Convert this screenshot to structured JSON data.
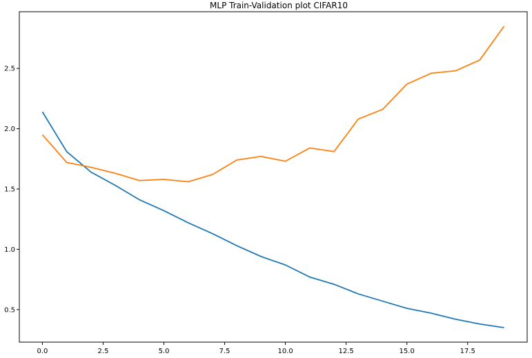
{
  "chart_data": {
    "type": "line",
    "title": "MLP Train-Validation plot CIFAR10",
    "xlabel": "",
    "ylabel": "",
    "x": [
      0,
      1,
      2,
      3,
      4,
      5,
      6,
      7,
      8,
      9,
      10,
      11,
      12,
      13,
      14,
      15,
      16,
      17,
      18,
      19
    ],
    "xlim": [
      -0.95,
      19.95
    ],
    "ylim": [
      0.23,
      2.97
    ],
    "xticks": [
      0.0,
      2.5,
      5.0,
      7.5,
      10.0,
      12.5,
      15.0,
      17.5
    ],
    "xtick_labels": [
      "0.0",
      "2.5",
      "5.0",
      "7.5",
      "10.0",
      "12.5",
      "15.0",
      "17.5"
    ],
    "yticks": [
      0.5,
      1.0,
      1.5,
      2.0,
      2.5
    ],
    "ytick_labels": [
      "0.5",
      "1.0",
      "1.5",
      "2.0",
      "2.5"
    ],
    "grid": false,
    "legend": "none",
    "series": [
      {
        "color": "#1f77b4",
        "values": [
          2.14,
          1.81,
          1.64,
          1.53,
          1.41,
          1.32,
          1.22,
          1.13,
          1.03,
          0.94,
          0.87,
          0.77,
          0.71,
          0.63,
          0.57,
          0.51,
          0.47,
          0.42,
          0.38,
          0.35
        ]
      },
      {
        "color": "#ff7f0e",
        "values": [
          1.95,
          1.72,
          1.68,
          1.63,
          1.57,
          1.58,
          1.56,
          1.62,
          1.74,
          1.77,
          1.73,
          1.84,
          1.81,
          2.08,
          2.16,
          2.37,
          2.46,
          2.48,
          2.57,
          2.85
        ]
      }
    ]
  }
}
